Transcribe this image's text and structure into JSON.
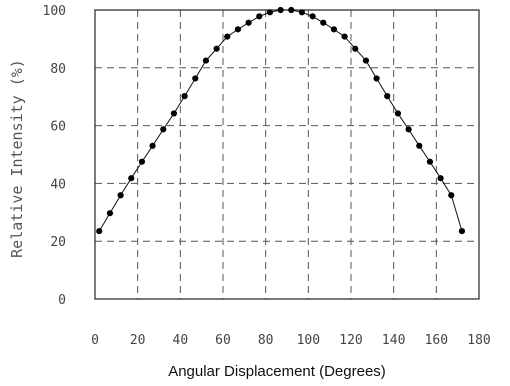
{
  "chart_data": {
    "type": "line",
    "title": "",
    "xlabel": "Angular Displacement (Degrees)",
    "ylabel": "Relative Intensity (%)",
    "xlim": [
      0,
      180
    ],
    "ylim": [
      0,
      100
    ],
    "xticks": [
      "0",
      "20",
      "40",
      "60",
      "80",
      "100",
      "120",
      "140",
      "160",
      "180"
    ],
    "yticks": [
      "0",
      "20",
      "40",
      "60",
      "80",
      "100"
    ],
    "grid": true,
    "legend": "none",
    "series": [
      {
        "markers": true,
        "x": [
          2,
          7,
          12,
          17,
          22,
          27,
          32,
          37,
          42,
          47,
          52,
          57,
          62,
          67,
          72,
          77,
          82,
          87,
          92,
          97,
          102,
          107,
          112,
          117,
          122,
          127,
          132,
          137,
          142,
          147,
          152,
          157,
          162,
          167,
          172
        ],
        "y": [
          23.5,
          29.7,
          35.9,
          41.8,
          47.5,
          53.0,
          58.7,
          64.2,
          70.2,
          76.3,
          82.5,
          86.6,
          90.8,
          93.3,
          95.6,
          97.8,
          99.2,
          100.0,
          100.0,
          99.2,
          97.8,
          95.6,
          93.3,
          90.8,
          86.6,
          82.5,
          76.3,
          70.2,
          64.2,
          58.7,
          53.0,
          47.5,
          41.8,
          35.9,
          23.5
        ]
      }
    ]
  }
}
